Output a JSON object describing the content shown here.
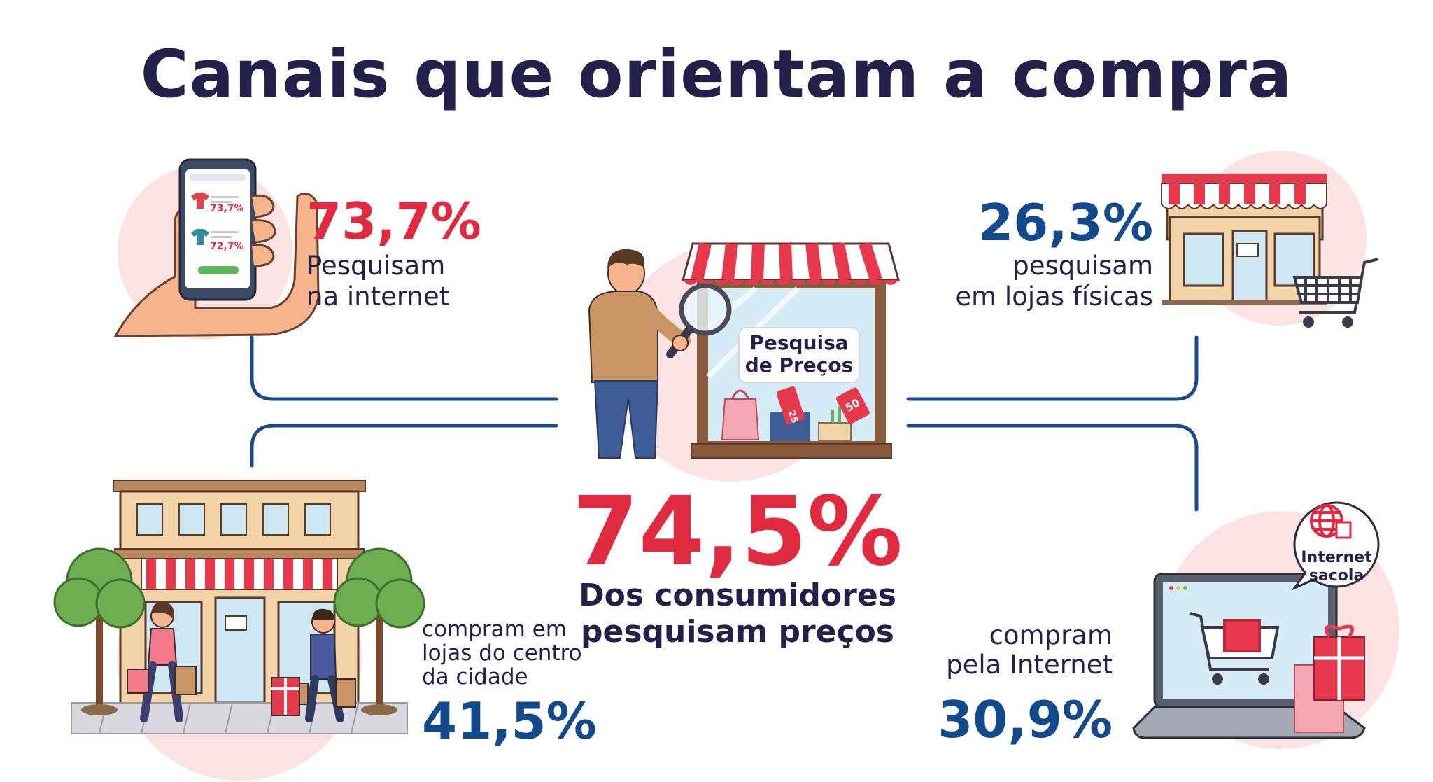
{
  "title": "Canais que orientam a compra",
  "center": {
    "value": "74,5%",
    "label_line1": "Dos consumidores",
    "label_line2": "pesquisam preços",
    "sign_line1": "Pesquisa",
    "sign_line2": "de Preços",
    "tag_a": "25",
    "tag_b": "50"
  },
  "top_left": {
    "value": "73,7%",
    "label_line1": "Pesquisam",
    "label_line2": "na internet",
    "phone_price_1": "73,7%",
    "phone_price_2": "72,7%"
  },
  "top_right": {
    "value": "26,3%",
    "label_line1": "pesquisam",
    "label_line2": "em lojas físicas"
  },
  "bottom_left": {
    "value": "41,5%",
    "label_line1": "compram em",
    "label_line2": "lojas do centro",
    "label_line3": "da cidade"
  },
  "bottom_right": {
    "value": "30,9%",
    "label_line1": "compram",
    "label_line2": "pela Internet",
    "bubble_line1": "Internet",
    "bubble_line2": "sacola"
  },
  "colors": {
    "navy": "#23214a",
    "red": "#e02a3f",
    "blue": "#124a8c",
    "pink_bg": "#fbe3e1",
    "connector": "#1b4a8a"
  }
}
